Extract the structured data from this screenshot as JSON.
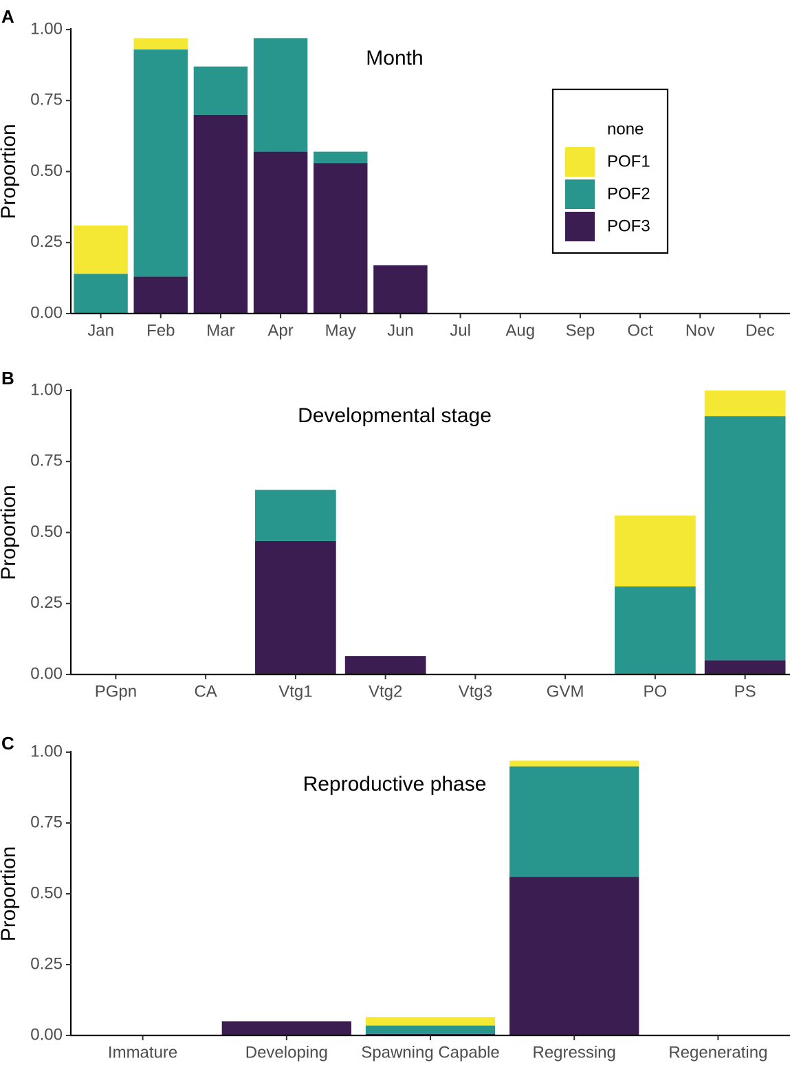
{
  "colors": {
    "none": "#ffffff",
    "POF1": "#f5e834",
    "POF2": "#28968c",
    "POF3": "#3b1d52"
  },
  "legend": {
    "entries": [
      "none",
      "POF1",
      "POF2",
      "POF3"
    ]
  },
  "chart_data": [
    {
      "panel": "A",
      "type": "bar",
      "stacked": true,
      "title": "Month",
      "xlabel": "",
      "ylabel": "Proportion",
      "ylim": [
        0,
        1
      ],
      "yticks": [
        "0.00",
        "0.25",
        "0.50",
        "0.75",
        "1.00"
      ],
      "grid": false,
      "legend_position": "top-right",
      "categories": [
        "Jan",
        "Feb",
        "Mar",
        "Apr",
        "May",
        "Jun",
        "Jul",
        "Aug",
        "Sep",
        "Oct",
        "Nov",
        "Dec"
      ],
      "series": [
        {
          "name": "POF3",
          "values": [
            0.0,
            0.13,
            0.7,
            0.57,
            0.53,
            0.17,
            0,
            0,
            0,
            0,
            0,
            0
          ]
        },
        {
          "name": "POF2",
          "values": [
            0.14,
            0.8,
            0.17,
            0.4,
            0.04,
            0,
            0,
            0,
            0,
            0,
            0,
            0
          ]
        },
        {
          "name": "POF1",
          "values": [
            0.17,
            0.04,
            0,
            0,
            0,
            0,
            0,
            0,
            0,
            0,
            0,
            0
          ]
        }
      ]
    },
    {
      "panel": "B",
      "type": "bar",
      "stacked": true,
      "title": "Developmental stage",
      "xlabel": "",
      "ylabel": "Proportion",
      "ylim": [
        0,
        1
      ],
      "yticks": [
        "0.00",
        "0.25",
        "0.50",
        "0.75",
        "1.00"
      ],
      "grid": false,
      "categories": [
        "PGpn",
        "CA",
        "Vtg1",
        "Vtg2",
        "Vtg3",
        "GVM",
        "PO",
        "PS"
      ],
      "series": [
        {
          "name": "POF3",
          "values": [
            0,
            0,
            0.47,
            0.065,
            0,
            0,
            0,
            0.05
          ]
        },
        {
          "name": "POF2",
          "values": [
            0,
            0,
            0.18,
            0,
            0,
            0,
            0.31,
            0.86
          ]
        },
        {
          "name": "POF1",
          "values": [
            0,
            0,
            0,
            0,
            0,
            0,
            0.25,
            0.09
          ]
        }
      ]
    },
    {
      "panel": "C",
      "type": "bar",
      "stacked": true,
      "title": "Reproductive phase",
      "xlabel": "",
      "ylabel": "Proportion",
      "ylim": [
        0,
        1
      ],
      "yticks": [
        "0.00",
        "0.25",
        "0.50",
        "0.75",
        "1.00"
      ],
      "grid": false,
      "categories": [
        "Immature",
        "Developing",
        "Spawning Capable",
        "Regressing",
        "Regenerating"
      ],
      "series": [
        {
          "name": "POF3",
          "values": [
            0,
            0.05,
            0.005,
            0.56,
            0
          ]
        },
        {
          "name": "POF2",
          "values": [
            0,
            0,
            0.03,
            0.39,
            0
          ]
        },
        {
          "name": "POF1",
          "values": [
            0,
            0,
            0.03,
            0.02,
            0
          ]
        }
      ]
    }
  ]
}
